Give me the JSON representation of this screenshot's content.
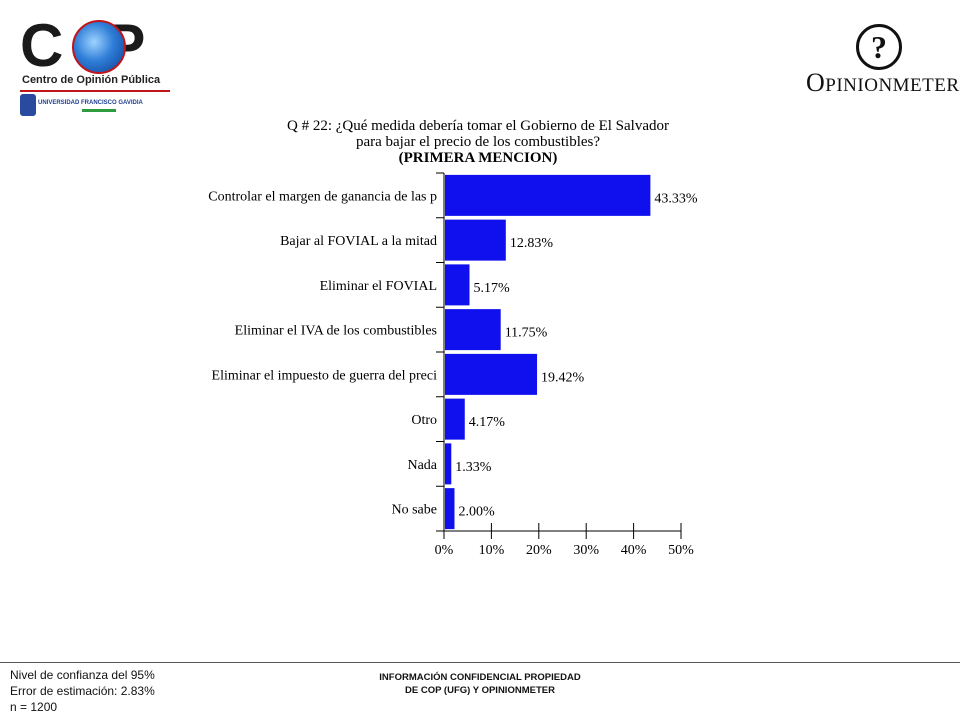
{
  "header": {
    "left_logo": {
      "name": "COP",
      "subtitle": "Centro de Opinión Pública",
      "university": "UNIVERSIDAD FRANCISCO GAVIDIA"
    },
    "right_logo": {
      "name": "OPINIONMETER",
      "mark": "?"
    }
  },
  "chart_data": {
    "type": "bar",
    "orientation": "horizontal",
    "title_lines": [
      "Q # 22: ¿Qué medida debería tomar el Gobierno de El Salvador",
      "para bajar el precio  de los combustibles?",
      "(PRIMERA MENCION)"
    ],
    "categories": [
      "Controlar el margen de ganancia de las p",
      "Bajar al FOVIAL a la mitad",
      "Eliminar el FOVIAL",
      "Eliminar el IVA de los combustibles",
      "Eliminar el impuesto de guerra del preci",
      "Otro",
      "Nada",
      "No sabe"
    ],
    "values": [
      43.33,
      12.83,
      5.17,
      11.75,
      19.42,
      4.17,
      1.33,
      2.0
    ],
    "value_labels": [
      "43.33%",
      "12.83%",
      "5.17%",
      "11.75%",
      "19.42%",
      "4.17%",
      "1.33%",
      "2.00%"
    ],
    "xlim": [
      0,
      50
    ],
    "x_ticks": [
      0,
      10,
      20,
      30,
      40,
      50
    ],
    "x_tick_labels": [
      "0%",
      "10%",
      "20%",
      "30%",
      "40%",
      "50%"
    ],
    "bar_color": "#1010ee",
    "grid": false,
    "legend": "none"
  },
  "footer": {
    "left_lines": [
      "Nivel de confianza del 95%",
      "Error de estimación: 2.83%",
      "n = 1200"
    ],
    "center_lines": [
      "INFORMACIÓN CONFIDENCIAL PROPIEDAD",
      "DE COP (UFG) Y OPINIONMETER"
    ]
  }
}
